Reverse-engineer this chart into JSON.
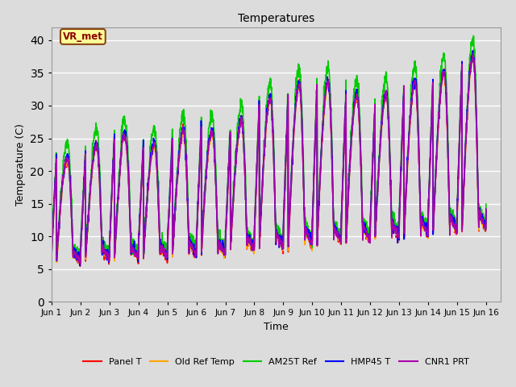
{
  "title": "Temperatures",
  "xlabel": "Time",
  "ylabel": "Temperature (C)",
  "ylim": [
    0,
    42
  ],
  "annotation_text": "VR_met",
  "annotation_color": "#8B0000",
  "annotation_bg": "#FFFF99",
  "annotation_border": "#8B4513",
  "bg_color": "#DCDCDC",
  "series": [
    {
      "label": "Panel T",
      "color": "#FF0000",
      "lw": 1.2
    },
    {
      "label": "Old Ref Temp",
      "color": "#FFA500",
      "lw": 1.2
    },
    {
      "label": "AM25T Ref",
      "color": "#00CC00",
      "lw": 1.2
    },
    {
      "label": "HMP45 T",
      "color": "#0000FF",
      "lw": 1.2
    },
    {
      "label": "CNR1 PRT",
      "color": "#AA00AA",
      "lw": 1.2
    }
  ],
  "tick_positions": [
    1,
    2,
    3,
    4,
    5,
    6,
    7,
    8,
    9,
    10,
    11,
    12,
    13,
    14,
    15,
    16
  ],
  "tick_labels": [
    "Jun 1",
    "Jun 2",
    "Jun 3",
    "Jun 4",
    "Jun 5",
    "Jun 6",
    "Jun 7",
    "Jun 8",
    "Jun 9",
    "Jun 10",
    "Jun 11",
    "Jun 12",
    "Jun 13",
    "Jun 14",
    "Jun 15",
    "Jun 16"
  ],
  "yticks": [
    0,
    5,
    10,
    15,
    20,
    25,
    30,
    35,
    40
  ]
}
